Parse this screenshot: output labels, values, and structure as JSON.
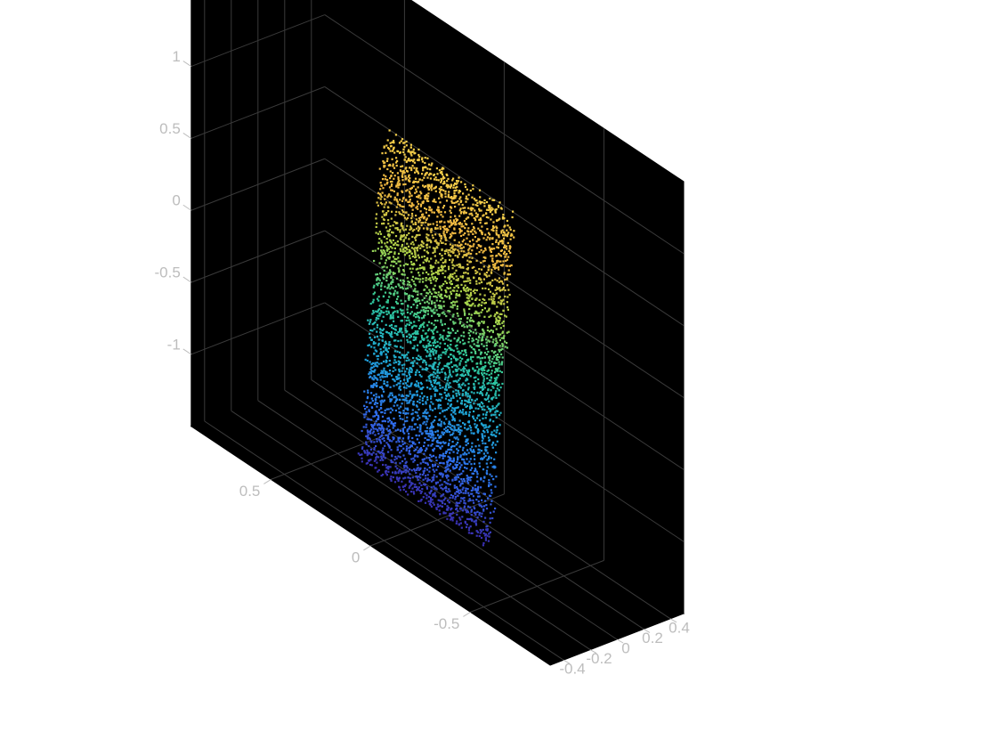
{
  "chart_data": {
    "type": "scatter",
    "title": "",
    "xlabel": "",
    "ylabel": "",
    "zlabel": "",
    "background_color": "#000000",
    "grid": true,
    "axis_color": "#bdbdbd",
    "grid_color": "#3a3a3a",
    "colormap": "turbo",
    "colormap_stops": [
      "#3a2fb0",
      "#2f6ff0",
      "#1ea6d8",
      "#2fc89a",
      "#a8d44a",
      "#f0b640",
      "#f5d04a"
    ],
    "xlim": [
      -0.5,
      0.5
    ],
    "ylim": [
      -0.9,
      0.9
    ],
    "zlim": [
      -1.5,
      1.5
    ],
    "x_ticks": [
      "-0.4",
      "-0.2",
      "0",
      "0.2",
      "0.4"
    ],
    "x_tick_values": [
      -0.4,
      -0.2,
      0,
      0.2,
      0.4
    ],
    "y_ticks": [
      "-0.5",
      "0",
      "0.5"
    ],
    "y_tick_values": [
      -0.5,
      0,
      0.5
    ],
    "z_ticks": [
      "-1",
      "-0.5",
      "0",
      "0.5",
      "1"
    ],
    "z_tick_values": [
      -1,
      -0.5,
      0,
      0.5,
      1
    ],
    "point_cloud": {
      "description": "uniformly distributed points filling a thin slanted slab, colored by z",
      "z_range": [
        -1.45,
        0.95
      ],
      "y_range": [
        -0.32,
        0.32
      ],
      "x_range": [
        -0.02,
        0.05
      ],
      "shear_y_per_z": -0.05,
      "sample_points": [
        {
          "x": 0.01,
          "y": -0.3,
          "z": 0.9
        },
        {
          "x": 0.02,
          "y": 0.3,
          "z": 0.55
        },
        {
          "x": 0.0,
          "y": 0.0,
          "z": 0.0
        },
        {
          "x": 0.02,
          "y": -0.2,
          "z": -0.5
        },
        {
          "x": 0.03,
          "y": 0.25,
          "z": -1.0
        },
        {
          "x": 0.04,
          "y": 0.3,
          "z": -1.45
        }
      ]
    }
  }
}
